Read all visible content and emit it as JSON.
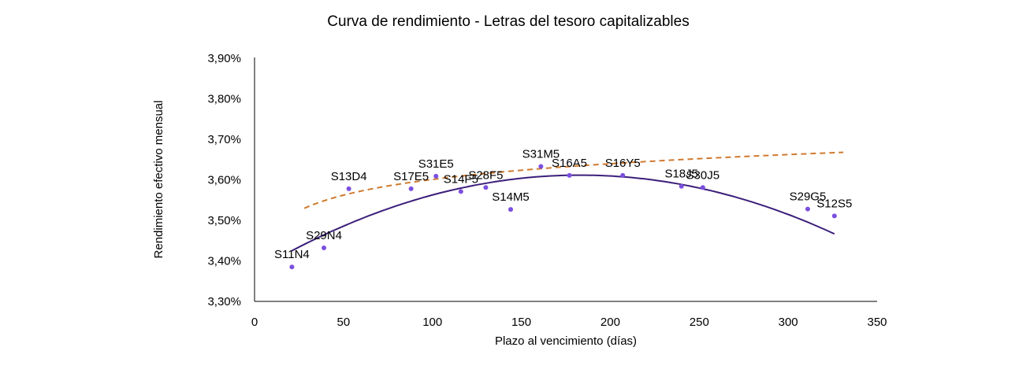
{
  "chart_data": {
    "type": "scatter",
    "title": "Curva de rendimiento  - Letras del tesoro capitalizables",
    "xlabel": "Plazo al vencimiento (días)",
    "ylabel": "Rendimiento efectivo mensual",
    "xlim": [
      0,
      350
    ],
    "ylim": [
      3.3,
      3.9
    ],
    "x_ticks": [
      0,
      50,
      100,
      150,
      200,
      250,
      300,
      350
    ],
    "x_tick_labels": [
      "0",
      "50",
      "100",
      "150",
      "200",
      "250",
      "300",
      "350"
    ],
    "y_ticks": [
      3.3,
      3.4,
      3.5,
      3.6,
      3.7,
      3.8,
      3.9
    ],
    "y_tick_labels": [
      "3,30%",
      "3,40%",
      "3,50%",
      "3,60%",
      "3,70%",
      "3,80%",
      "3,90%"
    ],
    "grid": false,
    "legend": "none",
    "points": [
      {
        "label": "S11N4",
        "x": 21,
        "y": 3.385
      },
      {
        "label": "S29N4",
        "x": 39,
        "y": 3.432
      },
      {
        "label": "S13D4",
        "x": 53,
        "y": 3.578
      },
      {
        "label": "S17E5",
        "x": 88,
        "y": 3.578
      },
      {
        "label": "S31E5",
        "x": 102,
        "y": 3.609
      },
      {
        "label": "S14F5",
        "x": 116,
        "y": 3.571
      },
      {
        "label": "S28F5",
        "x": 130,
        "y": 3.581
      },
      {
        "label": "S14M5",
        "x": 144,
        "y": 3.527
      },
      {
        "label": "S31M5",
        "x": 161,
        "y": 3.633
      },
      {
        "label": "S16A5",
        "x": 177,
        "y": 3.611
      },
      {
        "label": "S16Y5",
        "x": 207,
        "y": 3.611
      },
      {
        "label": "S18J5",
        "x": 240,
        "y": 3.584
      },
      {
        "label": "S30J5",
        "x": 252,
        "y": 3.581
      },
      {
        "label": "S29G5",
        "x": 311,
        "y": 3.528
      },
      {
        "label": "S12S5",
        "x": 326,
        "y": 3.511
      }
    ],
    "trend_poly": {
      "style": "solid",
      "color": "#3b1f7a",
      "coefficients": [
        3.3735,
        0.0026,
        -7.1e-06
      ],
      "x_range": [
        21,
        326
      ]
    },
    "trend_log": {
      "style": "dashed",
      "color": "#d07a2e",
      "coefficients": [
        3.3435,
        0.0559
      ],
      "x_range": [
        28,
        331
      ]
    },
    "colors": {
      "points": "#7b4fe0",
      "axis": "#000000"
    }
  }
}
